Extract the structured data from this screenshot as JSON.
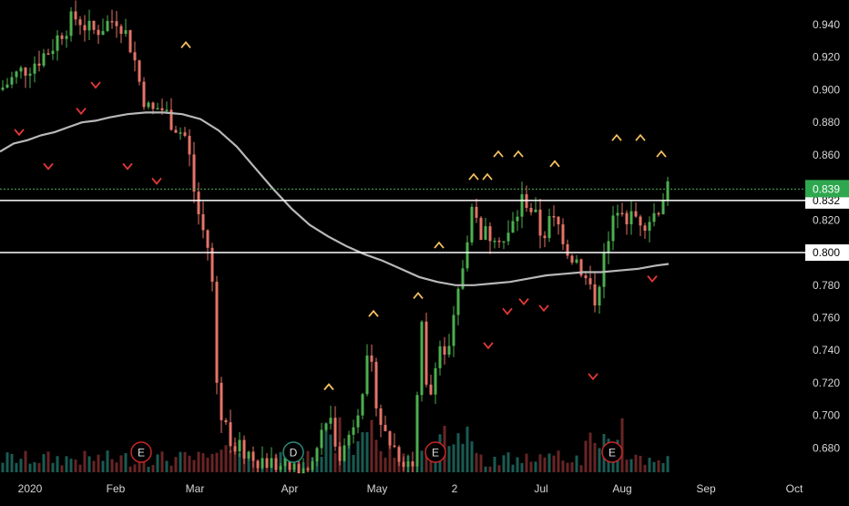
{
  "chart_data": {
    "type": "candlestick",
    "title": "",
    "xlabel": "",
    "ylabel": "",
    "ylim": [
      0.665,
      0.948
    ],
    "grid": false,
    "x_tick_labels": [
      "2020",
      "Feb",
      "Mar",
      "Apr",
      "May",
      "2",
      "Jul",
      "Aug",
      "Sep",
      "Oct"
    ],
    "y_tick_labels": [
      "0.940",
      "0.920",
      "0.900",
      "0.880",
      "0.860",
      "0.840",
      "0.820",
      "0.800",
      "0.780",
      "0.760",
      "0.740",
      "0.720",
      "0.700",
      "0.680"
    ],
    "y_ticks": [
      0.94,
      0.92,
      0.9,
      0.88,
      0.86,
      0.84,
      0.82,
      0.8,
      0.78,
      0.76,
      0.74,
      0.72,
      0.7,
      0.68
    ],
    "last_price_label": "0.839",
    "last_price": 0.839,
    "horizontal_levels": [
      {
        "label": "0.832",
        "value": 0.832
      },
      {
        "label": "0.800",
        "value": 0.8
      }
    ],
    "moving_average": [
      [
        0,
        0.862
      ],
      [
        15,
        0.867
      ],
      [
        30,
        0.869
      ],
      [
        45,
        0.872
      ],
      [
        60,
        0.874
      ],
      [
        75,
        0.877
      ],
      [
        90,
        0.88
      ],
      [
        105,
        0.881
      ],
      [
        120,
        0.883
      ],
      [
        140,
        0.885
      ],
      [
        160,
        0.886
      ],
      [
        180,
        0.886
      ],
      [
        200,
        0.885
      ],
      [
        220,
        0.882
      ],
      [
        240,
        0.875
      ],
      [
        260,
        0.865
      ],
      [
        280,
        0.852
      ],
      [
        300,
        0.839
      ],
      [
        320,
        0.827
      ],
      [
        340,
        0.817
      ],
      [
        360,
        0.81
      ],
      [
        380,
        0.804
      ],
      [
        400,
        0.799
      ],
      [
        420,
        0.795
      ],
      [
        440,
        0.79
      ],
      [
        460,
        0.785
      ],
      [
        480,
        0.782
      ],
      [
        500,
        0.78
      ],
      [
        520,
        0.78
      ],
      [
        540,
        0.781
      ],
      [
        560,
        0.782
      ],
      [
        580,
        0.784
      ],
      [
        600,
        0.786
      ],
      [
        620,
        0.787
      ],
      [
        640,
        0.788
      ],
      [
        660,
        0.788
      ],
      [
        680,
        0.789
      ],
      [
        700,
        0.79
      ],
      [
        720,
        0.792
      ],
      [
        734,
        0.793
      ]
    ],
    "pattern_markers": [
      {
        "type": "up",
        "x": 204,
        "value": 0.928
      },
      {
        "type": "up",
        "x": 361,
        "value": 0.718
      },
      {
        "type": "up",
        "x": 410,
        "value": 0.763
      },
      {
        "type": "up",
        "x": 459,
        "value": 0.774
      },
      {
        "type": "up",
        "x": 482,
        "value": 0.805
      },
      {
        "type": "up",
        "x": 520,
        "value": 0.847
      },
      {
        "type": "up",
        "x": 535,
        "value": 0.847
      },
      {
        "type": "up",
        "x": 547,
        "value": 0.861
      },
      {
        "type": "up",
        "x": 569,
        "value": 0.861
      },
      {
        "type": "up",
        "x": 609,
        "value": 0.855
      },
      {
        "type": "up",
        "x": 677,
        "value": 0.871
      },
      {
        "type": "up",
        "x": 703,
        "value": 0.871
      },
      {
        "type": "up",
        "x": 726,
        "value": 0.861
      },
      {
        "type": "down",
        "x": 21,
        "value": 0.874
      },
      {
        "type": "down",
        "x": 53,
        "value": 0.853
      },
      {
        "type": "down",
        "x": 89,
        "value": 0.887
      },
      {
        "type": "down",
        "x": 105,
        "value": 0.903
      },
      {
        "type": "down",
        "x": 140,
        "value": 0.853
      },
      {
        "type": "down",
        "x": 172,
        "value": 0.844
      },
      {
        "type": "down",
        "x": 536,
        "value": 0.743
      },
      {
        "type": "down",
        "x": 557,
        "value": 0.764
      },
      {
        "type": "down",
        "x": 575,
        "value": 0.77
      },
      {
        "type": "down",
        "x": 597,
        "value": 0.766
      },
      {
        "type": "down",
        "x": 651,
        "value": 0.724
      },
      {
        "type": "down",
        "x": 716,
        "value": 0.784
      }
    ],
    "event_markers": [
      {
        "label": "E",
        "x": 155
      },
      {
        "label": "D",
        "x": 322
      },
      {
        "label": "E",
        "x": 478
      },
      {
        "label": "E",
        "x": 672
      }
    ],
    "colors": {
      "up": "#4caf50",
      "down": "#e57368",
      "vol_up": "#1f6b62",
      "vol_down": "#7a2b2b",
      "ma": "#b8b8b8",
      "level": "#ffffff",
      "last_price_bg": "#2ea84f",
      "up_marker": "#f4c060",
      "down_marker": "#e53935",
      "event_stroke": "#c62828",
      "event_stroke_d": "#2e8b7a",
      "axis_text": "#d6d6d6"
    }
  }
}
